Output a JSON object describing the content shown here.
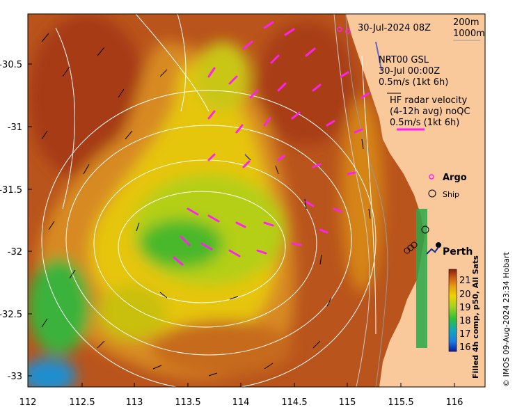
{
  "map": {
    "lat_ticks": [
      "-30.5",
      "-31",
      "-31.5",
      "-32",
      "-32.5",
      "-33"
    ],
    "lon_ticks": [
      "112",
      "112.5",
      "113",
      "113.5",
      "114",
      "114.5",
      "115",
      "115.5",
      "116"
    ],
    "lon_range": [
      112,
      116.3
    ],
    "lat_range": [
      -33.1,
      -30.05
    ]
  },
  "header": {
    "timestamp": "30-Jul-2024 08Z",
    "isobath_1": "200m",
    "isobath_2": "1000m"
  },
  "legend": {
    "gsl_line1": "NRT00 GSL",
    "gsl_line2": "30-Jul 00:00Z",
    "gsl_line3": "0.5m/s (1kt 6h)",
    "hf_line1": "HF radar velocity",
    "hf_line2": "(4-12h avg) noQC",
    "hf_line3": "0.5m/s (1kt 6h)",
    "argo_label": "Argo",
    "ship_label": "Ship"
  },
  "place": {
    "city": "Perth"
  },
  "colorbar": {
    "ticks": [
      "21",
      "20",
      "19",
      "18",
      "17",
      "16"
    ],
    "title": "Filled 4h comp, p50, All Sats"
  },
  "credit": "© IMOS 09-Aug-2024 23:34 Hobart",
  "colors": {
    "land": "#f9c89b",
    "hf_arrow": "#ff22ee",
    "warm": "#c0461c",
    "mid": "#e8c800",
    "cool": "#4cbf2a"
  }
}
